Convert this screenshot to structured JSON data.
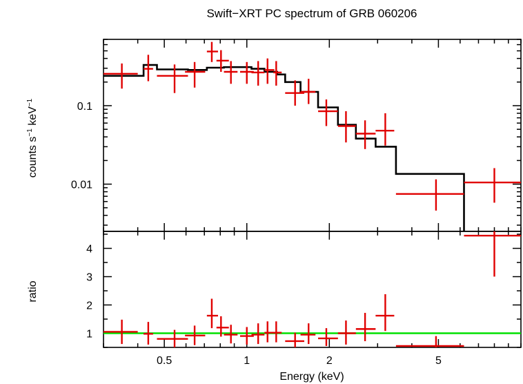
{
  "chart_data": {
    "type": "scatter",
    "title": "Swift−XRT PC spectrum of GRB 060206",
    "xlabel": "Energy (keV)",
    "x_scale": "log",
    "xlim": [
      0.3,
      10
    ],
    "x_ticks": [
      {
        "value": 0.5,
        "label": "0.5"
      },
      {
        "value": 1,
        "label": "1"
      },
      {
        "value": 2,
        "label": "2"
      },
      {
        "value": 5,
        "label": "5"
      }
    ],
    "colors": {
      "data": "#e00000",
      "model": "#000000",
      "unity": "#00e000"
    },
    "top_panel": {
      "ylabel_main": "counts s",
      "ylabel_sup1": "−1",
      "ylabel_mid": " keV",
      "ylabel_sup2": "−1",
      "y_scale": "log",
      "ylim": [
        0.0025,
        0.7
      ],
      "y_ticks": [
        {
          "value": 0.01,
          "label": "0.01"
        },
        {
          "value": 0.1,
          "label": "0.1"
        }
      ],
      "data": [
        {
          "x": 0.35,
          "xlo": 0.3,
          "xhi": 0.4,
          "y": 0.255,
          "ylo": 0.165,
          "yhi": 0.345
        },
        {
          "x": 0.437,
          "xlo": 0.42,
          "xhi": 0.455,
          "y": 0.295,
          "ylo": 0.205,
          "yhi": 0.445
        },
        {
          "x": 0.545,
          "xlo": 0.47,
          "xhi": 0.61,
          "y": 0.24,
          "ylo": 0.145,
          "yhi": 0.335
        },
        {
          "x": 0.645,
          "xlo": 0.595,
          "xhi": 0.705,
          "y": 0.27,
          "ylo": 0.17,
          "yhi": 0.36
        },
        {
          "x": 0.745,
          "xlo": 0.715,
          "xhi": 0.785,
          "y": 0.49,
          "ylo": 0.36,
          "yhi": 0.65
        },
        {
          "x": 0.805,
          "xlo": 0.775,
          "xhi": 0.86,
          "y": 0.375,
          "ylo": 0.27,
          "yhi": 0.51
        },
        {
          "x": 0.875,
          "xlo": 0.825,
          "xhi": 0.925,
          "y": 0.27,
          "ylo": 0.19,
          "yhi": 0.37
        },
        {
          "x": 1.0,
          "xlo": 0.945,
          "xhi": 1.06,
          "y": 0.27,
          "ylo": 0.19,
          "yhi": 0.36
        },
        {
          "x": 1.1,
          "xlo": 1.04,
          "xhi": 1.16,
          "y": 0.265,
          "ylo": 0.18,
          "yhi": 0.37
        },
        {
          "x": 1.19,
          "xlo": 1.16,
          "xhi": 1.26,
          "y": 0.285,
          "ylo": 0.19,
          "yhi": 0.4
        },
        {
          "x": 1.28,
          "xlo": 1.25,
          "xhi": 1.34,
          "y": 0.265,
          "ylo": 0.18,
          "yhi": 0.37
        },
        {
          "x": 1.5,
          "xlo": 1.38,
          "xhi": 1.62,
          "y": 0.145,
          "ylo": 0.1,
          "yhi": 0.21
        },
        {
          "x": 1.68,
          "xlo": 1.57,
          "xhi": 1.78,
          "y": 0.15,
          "ylo": 0.105,
          "yhi": 0.22
        },
        {
          "x": 1.95,
          "xlo": 1.82,
          "xhi": 2.15,
          "y": 0.085,
          "ylo": 0.055,
          "yhi": 0.12
        },
        {
          "x": 2.3,
          "xlo": 2.15,
          "xhi": 2.5,
          "y": 0.055,
          "ylo": 0.034,
          "yhi": 0.085
        },
        {
          "x": 2.7,
          "xlo": 2.5,
          "xhi": 2.95,
          "y": 0.044,
          "ylo": 0.028,
          "yhi": 0.065
        },
        {
          "x": 3.2,
          "xlo": 2.95,
          "xhi": 3.45,
          "y": 0.048,
          "ylo": 0.031,
          "yhi": 0.08
        },
        {
          "x": 4.9,
          "xlo": 3.5,
          "xhi": 6.2,
          "y": 0.0075,
          "ylo": 0.0046,
          "yhi": 0.0115
        },
        {
          "x": 8.0,
          "xlo": 6.2,
          "xhi": 10.0,
          "y": 0.0105,
          "ylo": 0.0058,
          "yhi": 0.016
        }
      ],
      "model_steps": [
        {
          "x0": 0.3,
          "x1": 0.42,
          "y": 0.24
        },
        {
          "x0": 0.42,
          "x1": 0.47,
          "y": 0.33
        },
        {
          "x0": 0.47,
          "x1": 0.61,
          "y": 0.29
        },
        {
          "x0": 0.61,
          "x1": 0.715,
          "y": 0.285
        },
        {
          "x0": 0.715,
          "x1": 0.825,
          "y": 0.305
        },
        {
          "x0": 0.825,
          "x1": 1.04,
          "y": 0.31
        },
        {
          "x0": 1.04,
          "x1": 1.16,
          "y": 0.295
        },
        {
          "x0": 1.16,
          "x1": 1.29,
          "y": 0.27
        },
        {
          "x0": 1.29,
          "x1": 1.38,
          "y": 0.25
        },
        {
          "x0": 1.38,
          "x1": 1.57,
          "y": 0.2
        },
        {
          "x0": 1.57,
          "x1": 1.82,
          "y": 0.15
        },
        {
          "x0": 1.82,
          "x1": 2.15,
          "y": 0.095
        },
        {
          "x0": 2.15,
          "x1": 2.5,
          "y": 0.057
        },
        {
          "x0": 2.5,
          "x1": 2.95,
          "y": 0.038
        },
        {
          "x0": 2.95,
          "x1": 3.5,
          "y": 0.03
        },
        {
          "x0": 3.5,
          "x1": 6.2,
          "y": 0.0135
        }
      ]
    },
    "bottom_panel": {
      "ylabel": "ratio",
      "y_scale": "linear",
      "ylim": [
        0.5,
        4.6
      ],
      "y_ticks": [
        {
          "value": 1,
          "label": "1"
        },
        {
          "value": 2,
          "label": "2"
        },
        {
          "value": 3,
          "label": "3"
        },
        {
          "value": 4,
          "label": "4"
        }
      ],
      "unity_line": 1,
      "data": [
        {
          "x": 0.35,
          "xlo": 0.3,
          "xhi": 0.4,
          "y": 1.05,
          "ylo": 0.62,
          "yhi": 1.48
        },
        {
          "x": 0.437,
          "xlo": 0.42,
          "xhi": 0.455,
          "y": 0.98,
          "ylo": 0.6,
          "yhi": 1.4
        },
        {
          "x": 0.545,
          "xlo": 0.47,
          "xhi": 0.61,
          "y": 0.8,
          "ylo": 0.5,
          "yhi": 1.12
        },
        {
          "x": 0.645,
          "xlo": 0.595,
          "xhi": 0.705,
          "y": 0.92,
          "ylo": 0.58,
          "yhi": 1.27
        },
        {
          "x": 0.745,
          "xlo": 0.715,
          "xhi": 0.785,
          "y": 1.62,
          "ylo": 1.18,
          "yhi": 2.22
        },
        {
          "x": 0.805,
          "xlo": 0.775,
          "xhi": 0.86,
          "y": 1.2,
          "ylo": 0.88,
          "yhi": 1.6
        },
        {
          "x": 0.875,
          "xlo": 0.825,
          "xhi": 0.925,
          "y": 0.95,
          "ylo": 0.64,
          "yhi": 1.3
        },
        {
          "x": 1.0,
          "xlo": 0.945,
          "xhi": 1.06,
          "y": 0.9,
          "ylo": 0.6,
          "yhi": 1.22
        },
        {
          "x": 1.1,
          "xlo": 1.04,
          "xhi": 1.16,
          "y": 0.95,
          "ylo": 0.62,
          "yhi": 1.35
        },
        {
          "x": 1.19,
          "xlo": 1.16,
          "xhi": 1.26,
          "y": 1.02,
          "ylo": 0.68,
          "yhi": 1.42
        },
        {
          "x": 1.28,
          "xlo": 1.25,
          "xhi": 1.34,
          "y": 1.02,
          "ylo": 0.68,
          "yhi": 1.42
        },
        {
          "x": 1.5,
          "xlo": 1.38,
          "xhi": 1.62,
          "y": 0.72,
          "ylo": 0.5,
          "yhi": 1.02
        },
        {
          "x": 1.68,
          "xlo": 1.57,
          "xhi": 1.78,
          "y": 0.95,
          "ylo": 0.62,
          "yhi": 1.35
        },
        {
          "x": 1.95,
          "xlo": 1.82,
          "xhi": 2.15,
          "y": 0.82,
          "ylo": 0.55,
          "yhi": 1.18
        },
        {
          "x": 2.3,
          "xlo": 2.15,
          "xhi": 2.5,
          "y": 1.0,
          "ylo": 0.6,
          "yhi": 1.45
        },
        {
          "x": 2.7,
          "xlo": 2.5,
          "xhi": 2.95,
          "y": 1.15,
          "ylo": 0.72,
          "yhi": 1.72
        },
        {
          "x": 3.2,
          "xlo": 2.95,
          "xhi": 3.45,
          "y": 1.62,
          "ylo": 1.08,
          "yhi": 2.38
        },
        {
          "x": 4.9,
          "xlo": 3.5,
          "xhi": 6.2,
          "y": 0.55,
          "ylo": 0.5,
          "yhi": 0.9
        },
        {
          "x": 8.0,
          "xlo": 6.2,
          "xhi": 10.0,
          "y": 4.45,
          "ylo": 3.0,
          "yhi": 4.6
        }
      ]
    }
  }
}
